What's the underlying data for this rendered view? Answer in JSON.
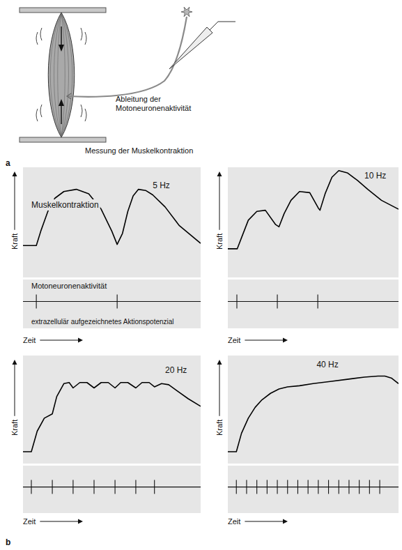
{
  "figure": {
    "panel_a": {
      "letter": "a",
      "labels": {
        "recording": [
          "Ableitung der",
          "Motoneuronenaktivität"
        ],
        "measurement": "Messung der Muskelkontraktion"
      }
    },
    "panel_b": {
      "letter": "b"
    }
  },
  "chart_data": [
    {
      "type": "line",
      "title": "5 Hz",
      "xlabel": "Zeit",
      "ylabel": "Kraft",
      "xlim": [
        0,
        100
      ],
      "ylim": [
        0,
        100
      ],
      "tick_labels": false,
      "color": "#000000",
      "annotations": [
        "Muskelkontraktion",
        "Motoneuronenaktivität",
        "extrazellulär aufgezeichnetes Aktionspotenzial"
      ],
      "x": [
        0,
        7.5,
        10,
        14,
        18,
        23,
        30,
        37,
        44,
        50,
        53,
        56,
        59,
        62,
        65,
        69,
        73,
        80,
        88,
        100
      ],
      "values": [
        29,
        29,
        42,
        60,
        72,
        78,
        80,
        76,
        62,
        42,
        30,
        40,
        60,
        74,
        80,
        79,
        75,
        64,
        47,
        31
      ],
      "spikes": [
        7.5,
        53
      ]
    },
    {
      "type": "line",
      "title": "10 Hz",
      "xlabel": "Zeit",
      "ylabel": "Kraft",
      "xlim": [
        0,
        100
      ],
      "ylim": [
        0,
        100
      ],
      "tick_labels": false,
      "color": "#000000",
      "x": [
        0,
        5.5,
        8,
        12,
        17,
        22,
        28,
        30,
        33,
        37,
        42,
        48,
        53,
        54,
        57,
        61,
        65,
        70,
        76,
        82,
        90,
        100
      ],
      "values": [
        26,
        26,
        36,
        52,
        60,
        61,
        48,
        46,
        58,
        70,
        78,
        77,
        63,
        61,
        76,
        91,
        97,
        95,
        88,
        80,
        70,
        62
      ],
      "spikes": [
        5.3,
        29,
        52.7
      ]
    },
    {
      "type": "line",
      "title": "20 Hz",
      "xlabel": "Zeit",
      "ylabel": "Kraft",
      "xlim": [
        0,
        100
      ],
      "ylim": [
        0,
        100
      ],
      "tick_labels": false,
      "color": "#000000",
      "x": [
        0,
        4.7,
        8,
        12,
        16.5,
        19,
        23,
        26,
        28.2,
        32,
        36,
        40,
        44,
        48,
        51.8,
        55,
        59,
        63.5,
        67,
        71,
        74,
        78,
        82,
        87,
        93,
        100
      ],
      "values": [
        11,
        11,
        30,
        42,
        46,
        62,
        74,
        75,
        70,
        75,
        75,
        70,
        75,
        75,
        70,
        75,
        75,
        70,
        75,
        75,
        71,
        74,
        73,
        67,
        60,
        53
      ],
      "spikes": [
        4.7,
        16.5,
        28.2,
        40,
        51.8,
        63.5,
        74
      ]
    },
    {
      "type": "line",
      "title": "40 Hz",
      "xlabel": "Zeit",
      "ylabel": "Kraft",
      "xlim": [
        0,
        100
      ],
      "ylim": [
        0,
        100
      ],
      "tick_labels": false,
      "color": "#000000",
      "x": [
        0,
        5,
        8,
        12,
        16,
        20,
        25,
        30,
        35,
        42,
        50,
        60,
        70,
        80,
        88,
        92,
        96,
        100
      ],
      "values": [
        11,
        11,
        28,
        42,
        52,
        59,
        65,
        69,
        71,
        72,
        74,
        76,
        78,
        80,
        81,
        81,
        79,
        74
      ],
      "spikes": [
        5,
        11,
        17,
        23,
        29,
        35,
        41,
        47,
        53,
        59,
        65,
        71,
        77,
        83,
        89
      ]
    }
  ]
}
